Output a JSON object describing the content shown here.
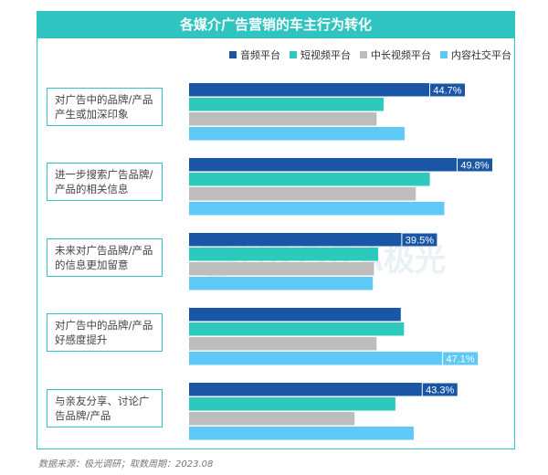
{
  "chart_data": {
    "type": "bar",
    "orientation": "horizontal",
    "title": "各媒介广告营销的车主行为转化",
    "categories": [
      "对广告中的品牌/产品产生或加深印象",
      "进一步搜索广告品牌/产品的相关信息",
      "未来对广告品牌/产品的信息更加留意",
      "对广告中的品牌/产品好感度提升",
      "与亲友分享、讨论广告品牌/产品"
    ],
    "series": [
      {
        "name": "音频平台",
        "color": "#1a56a6",
        "values": [
          44.7,
          49.8,
          39.5,
          39.4,
          43.3
        ],
        "labels": [
          "44.7%",
          "49.8%",
          "39.5%",
          "",
          "43.3%"
        ]
      },
      {
        "name": "短视频平台",
        "color": "#2ec9bd",
        "values": [
          36.2,
          44.8,
          35.2,
          40.0,
          38.4
        ],
        "labels": [
          "",
          "",
          "",
          "",
          ""
        ]
      },
      {
        "name": "中长视频平台",
        "color": "#bdbdbd",
        "values": [
          34.9,
          42.2,
          34.4,
          34.9,
          30.8
        ],
        "labels": [
          "",
          "",
          "",
          "",
          ""
        ]
      },
      {
        "name": "内容社交平台",
        "color": "#5ec8f6",
        "values": [
          40.1,
          47.5,
          34.2,
          47.1,
          41.8
        ],
        "labels": [
          "",
          "",
          "",
          "47.1%",
          ""
        ]
      }
    ],
    "xlim": [
      0,
      60
    ],
    "grid": false,
    "legend_position": "top-right"
  },
  "watermark": "AURORA 极光",
  "source": "数据来源：极光调研；取数周期：2023.08"
}
